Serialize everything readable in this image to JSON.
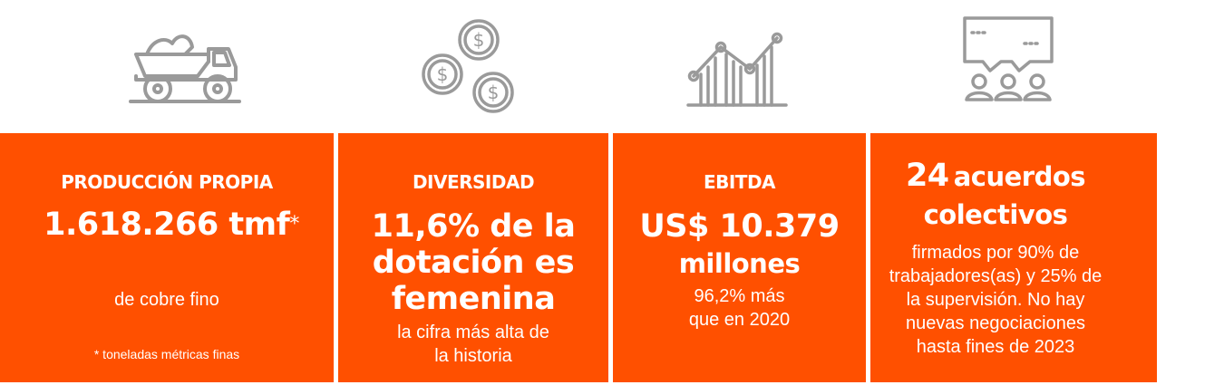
{
  "icons": [
    {
      "name": "mining-truck-icon"
    },
    {
      "name": "coins-icon"
    },
    {
      "name": "growth-chart-icon"
    },
    {
      "name": "meeting-dialogue-icon"
    }
  ],
  "colors": {
    "panel_bg": "#ff5000",
    "icon_stroke": "#9a9a9a",
    "text": "#ffffff"
  },
  "stats": {
    "production": {
      "heading": "PRODUCCIÓN PROPIA",
      "value": "1.618.266 tmf",
      "asterisk": "*",
      "description": "de cobre fino",
      "footnote": "* toneladas métricas finas"
    },
    "diversity": {
      "heading": "DIVERSIDAD",
      "value_line1": "11,6% de la",
      "value_line2": "dotación es",
      "value_line3": "femenina",
      "description_line1": "la cifra más alta de",
      "description_line2": "la historia"
    },
    "ebitda": {
      "heading": "EBITDA",
      "value": "US$ 10.379",
      "unit": "millones",
      "description_line1": "96,2% más",
      "description_line2": "que en 2020"
    },
    "agreements": {
      "value_number": "24",
      "value_rest": "acuerdos",
      "value_line2": "colectivos",
      "description_line1": "firmados por 90% de",
      "description_line2": "trabajadores(as) y 25% de",
      "description_line3": "la supervisión. No hay",
      "description_line4": "nuevas negociaciones",
      "description_line5": "hasta fines de 2023"
    }
  }
}
